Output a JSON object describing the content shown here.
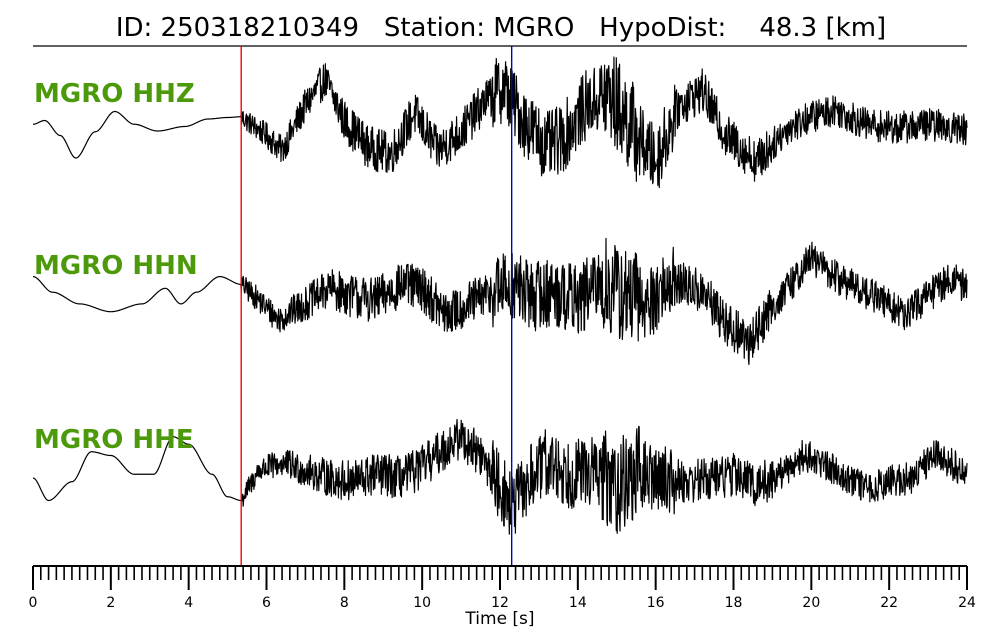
{
  "chart_data": {
    "type": "line",
    "title": "ID: 250318210349   Station: MGRO   HypoDist:    48.3 [km]",
    "xlabel": "Time [s]",
    "ylabel": "",
    "xlim": [
      0,
      24
    ],
    "x_ticks": [
      "0",
      "2",
      "4",
      "6",
      "8",
      "10",
      "12",
      "14",
      "16",
      "18",
      "20",
      "22",
      "24"
    ],
    "picks": [
      {
        "time": 5.35,
        "color": "#ff0000"
      },
      {
        "time": 12.3,
        "color": "#0000cc"
      }
    ],
    "series": [
      {
        "name": "MGRO HHZ",
        "color": "#000000",
        "label_color": "#4c9a0b",
        "pre_pick_shape": [
          [
            0.0,
            0.05
          ],
          [
            0.3,
            0.1
          ],
          [
            0.7,
            -0.1
          ],
          [
            1.1,
            -0.4
          ],
          [
            1.6,
            -0.05
          ],
          [
            2.1,
            0.22
          ],
          [
            2.6,
            0.05
          ],
          [
            3.2,
            -0.04
          ],
          [
            3.9,
            0.02
          ],
          [
            4.5,
            0.12
          ],
          [
            5.0,
            0.14
          ],
          [
            5.35,
            0.15
          ]
        ],
        "post_pick_envelope": [
          [
            5.35,
            0.15
          ],
          [
            6.0,
            -0.1
          ],
          [
            6.4,
            -0.3
          ],
          [
            7.0,
            0.3
          ],
          [
            7.5,
            0.65
          ],
          [
            8.0,
            0.1
          ],
          [
            8.6,
            -0.25
          ],
          [
            9.2,
            -0.35
          ],
          [
            9.8,
            0.2
          ],
          [
            10.4,
            -0.3
          ],
          [
            11.0,
            -0.05
          ],
          [
            11.6,
            0.35
          ],
          [
            12.1,
            0.55
          ],
          [
            12.6,
            0.1
          ],
          [
            13.2,
            -0.25
          ],
          [
            13.6,
            -0.15
          ],
          [
            14.2,
            0.3
          ],
          [
            14.8,
            0.45
          ],
          [
            15.4,
            0.0
          ],
          [
            16.0,
            -0.45
          ],
          [
            16.6,
            0.3
          ],
          [
            17.2,
            0.5
          ],
          [
            17.8,
            -0.1
          ],
          [
            18.6,
            -0.45
          ],
          [
            19.4,
            0.0
          ],
          [
            20.0,
            0.15
          ],
          [
            20.6,
            0.25
          ],
          [
            21.4,
            0.05
          ],
          [
            22.2,
            0.0
          ],
          [
            23.0,
            0.05
          ],
          [
            24.0,
            -0.02
          ]
        ]
      },
      {
        "name": "MGRO HHN",
        "color": "#000000",
        "label_color": "#4c9a0b",
        "pre_pick_shape": [
          [
            0.0,
            0.3
          ],
          [
            0.5,
            0.1
          ],
          [
            1.2,
            -0.05
          ],
          [
            2.0,
            -0.15
          ],
          [
            2.8,
            -0.05
          ],
          [
            3.4,
            0.15
          ],
          [
            3.8,
            -0.05
          ],
          [
            4.2,
            0.1
          ],
          [
            4.8,
            0.3
          ],
          [
            5.35,
            0.2
          ]
        ],
        "post_pick_envelope": [
          [
            5.35,
            0.2
          ],
          [
            5.8,
            0.0
          ],
          [
            6.3,
            -0.25
          ],
          [
            7.0,
            -0.05
          ],
          [
            7.6,
            0.15
          ],
          [
            8.2,
            0.05
          ],
          [
            8.8,
            0.0
          ],
          [
            9.5,
            0.2
          ],
          [
            10.0,
            0.15
          ],
          [
            10.6,
            -0.2
          ],
          [
            11.2,
            -0.05
          ],
          [
            11.8,
            0.1
          ],
          [
            12.3,
            0.2
          ],
          [
            12.8,
            0.05
          ],
          [
            13.4,
            0.1
          ],
          [
            14.0,
            0.0
          ],
          [
            14.6,
            0.2
          ],
          [
            15.2,
            0.05
          ],
          [
            15.8,
            -0.05
          ],
          [
            16.4,
            0.25
          ],
          [
            17.2,
            0.1
          ],
          [
            17.8,
            -0.3
          ],
          [
            18.4,
            -0.55
          ],
          [
            18.9,
            -0.15
          ],
          [
            19.4,
            0.15
          ],
          [
            20.0,
            0.55
          ],
          [
            20.6,
            0.3
          ],
          [
            21.2,
            0.15
          ],
          [
            21.8,
            0.0
          ],
          [
            22.4,
            -0.2
          ],
          [
            23.0,
            0.05
          ],
          [
            23.6,
            0.3
          ],
          [
            24.0,
            0.15
          ]
        ]
      },
      {
        "name": "MGRO HHE",
        "color": "#000000",
        "label_color": "#4c9a0b",
        "pre_pick_shape": [
          [
            0.0,
            0.0
          ],
          [
            0.4,
            -0.3
          ],
          [
            1.0,
            -0.05
          ],
          [
            1.5,
            0.35
          ],
          [
            2.0,
            0.3
          ],
          [
            2.6,
            0.05
          ],
          [
            3.1,
            0.05
          ],
          [
            3.6,
            0.55
          ],
          [
            4.0,
            0.45
          ],
          [
            4.6,
            0.05
          ],
          [
            5.0,
            -0.25
          ],
          [
            5.35,
            -0.3
          ]
        ],
        "post_pick_envelope": [
          [
            5.35,
            -0.3
          ],
          [
            5.8,
            0.1
          ],
          [
            6.4,
            0.2
          ],
          [
            7.0,
            0.1
          ],
          [
            7.6,
            0.0
          ],
          [
            8.2,
            -0.05
          ],
          [
            8.8,
            0.05
          ],
          [
            9.5,
            0.0
          ],
          [
            10.0,
            0.15
          ],
          [
            10.6,
            0.4
          ],
          [
            11.0,
            0.55
          ],
          [
            11.5,
            0.3
          ],
          [
            12.0,
            -0.1
          ],
          [
            12.3,
            -0.4
          ],
          [
            12.8,
            0.0
          ],
          [
            13.2,
            0.2
          ],
          [
            13.8,
            0.05
          ],
          [
            14.4,
            0.1
          ],
          [
            15.0,
            -0.1
          ],
          [
            15.6,
            0.05
          ],
          [
            16.2,
            0.0
          ],
          [
            16.8,
            -0.05
          ],
          [
            17.4,
            0.0
          ],
          [
            18.0,
            0.05
          ],
          [
            18.6,
            -0.1
          ],
          [
            19.2,
            0.05
          ],
          [
            19.8,
            0.3
          ],
          [
            20.3,
            0.2
          ],
          [
            20.8,
            0.05
          ],
          [
            21.4,
            -0.15
          ],
          [
            22.0,
            -0.05
          ],
          [
            22.6,
            0.0
          ],
          [
            23.2,
            0.35
          ],
          [
            23.6,
            0.2
          ],
          [
            24.0,
            0.0
          ]
        ]
      }
    ]
  }
}
